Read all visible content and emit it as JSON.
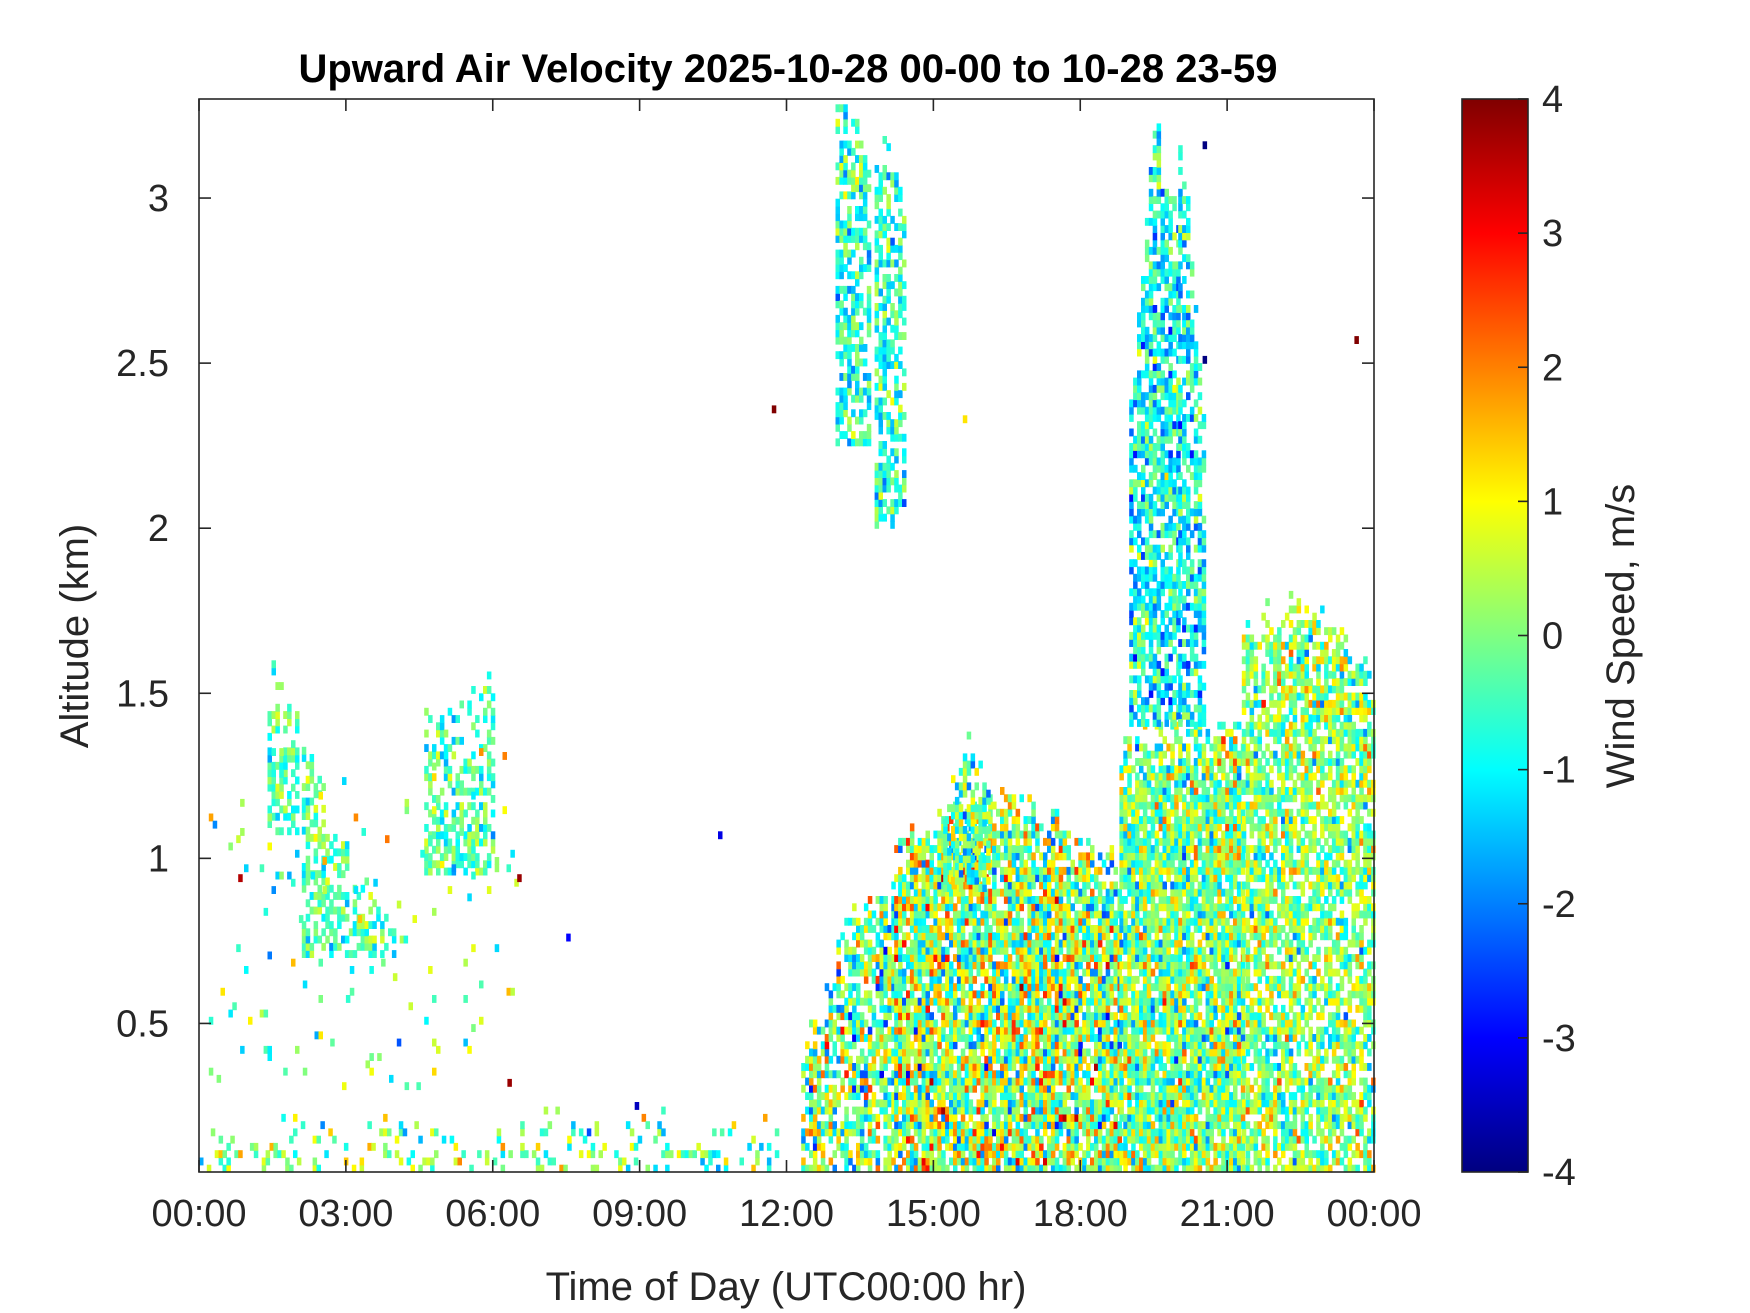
{
  "chart_data": {
    "type": "heatmap",
    "title": "Upward Air Velocity 2025-10-28 00-00 to 10-28 23-59",
    "xlabel": "Time of Day (UTC00:00 hr)",
    "ylabel": "Altitude (km)",
    "colorbar_label": "Wind Speed, m/s",
    "colormap": "jet",
    "x_ticks": [
      "00:00",
      "03:00",
      "06:00",
      "09:00",
      "12:00",
      "15:00",
      "18:00",
      "21:00",
      "00:00"
    ],
    "x_tick_hours": [
      0,
      3,
      6,
      9,
      12,
      15,
      18,
      21,
      24
    ],
    "xlim_hours": [
      0,
      24
    ],
    "y_ticks": [
      "0.5",
      "1",
      "1.5",
      "2",
      "2.5",
      "3"
    ],
    "y_tick_values": [
      0.5,
      1,
      1.5,
      2,
      2.5,
      3
    ],
    "ylim_km": [
      0.05,
      3.3
    ],
    "colorbar_ticks": [
      "4",
      "3",
      "2",
      "1",
      "0",
      "-1",
      "-2",
      "-3",
      "-4"
    ],
    "colorbar_tick_values": [
      4,
      3,
      2,
      1,
      0,
      -1,
      -2,
      -3,
      -4
    ],
    "clim": [
      -4,
      4
    ],
    "grid": false,
    "cell_size": {
      "hours": 0.08,
      "km": 0.022
    },
    "regions": [
      {
        "h0": 0.0,
        "h1": 11.8,
        "top0": 0.2,
        "top1": 0.2,
        "top2": 0.2,
        "bottom": 0.05,
        "density": 0.28,
        "mean": -0.2,
        "spread": 0.9
      },
      {
        "h0": 1.4,
        "h1": 2.0,
        "top0": 1.58,
        "top1": 1.55,
        "top2": 1.5,
        "bottom": 1.05,
        "density": 0.55,
        "mean": -0.4,
        "spread": 0.6
      },
      {
        "h0": 2.1,
        "h1": 4.2,
        "top0": 1.38,
        "top1": 0.95,
        "top2": 0.8,
        "bottom": 0.7,
        "density": 0.5,
        "mean": -0.3,
        "spread": 0.6
      },
      {
        "h0": 4.6,
        "h1": 6.0,
        "top0": 1.45,
        "top1": 1.45,
        "top2": 1.55,
        "bottom": 0.95,
        "density": 0.5,
        "mean": -0.4,
        "spread": 0.6
      },
      {
        "h0": 0.2,
        "h1": 6.5,
        "top0": 1.4,
        "top1": 1.3,
        "top2": 1.3,
        "bottom": 0.3,
        "density": 0.04,
        "mean": 0.0,
        "spread": 1.0
      },
      {
        "h0": 12.3,
        "h1": 14.2,
        "top0": 0.4,
        "top1": 0.85,
        "top2": 0.95,
        "bottom": 0.05,
        "density": 0.65,
        "mean": 0.0,
        "spread": 1.2
      },
      {
        "h0": 14.2,
        "h1": 18.8,
        "top0": 1.05,
        "top1": 1.2,
        "top2": 0.97,
        "bottom": 0.05,
        "density": 0.85,
        "mean": 0.2,
        "spread": 1.3
      },
      {
        "h0": 15.2,
        "h1": 16.1,
        "top0": 1.15,
        "top1": 1.4,
        "top2": 1.2,
        "bottom": 0.9,
        "density": 0.65,
        "mean": -0.2,
        "spread": 1.0
      },
      {
        "h0": 18.8,
        "h1": 21.3,
        "top0": 1.35,
        "top1": 1.4,
        "top2": 1.4,
        "bottom": 0.05,
        "density": 0.88,
        "mean": 0.0,
        "spread": 1.0
      },
      {
        "h0": 19.0,
        "h1": 20.0,
        "top0": 2.4,
        "top1": 3.25,
        "top2": 2.9,
        "bottom": 1.4,
        "density": 0.7,
        "mean": -0.9,
        "spread": 0.8
      },
      {
        "h0": 20.0,
        "h1": 20.5,
        "top0": 3.25,
        "top1": 2.8,
        "top2": 2.3,
        "bottom": 1.4,
        "density": 0.6,
        "mean": -1.0,
        "spread": 0.8
      },
      {
        "h0": 13.0,
        "h1": 13.7,
        "top0": 3.3,
        "top1": 3.25,
        "top2": 3.1,
        "bottom": 2.25,
        "density": 0.6,
        "mean": -0.7,
        "spread": 0.7
      },
      {
        "h0": 13.8,
        "h1": 14.4,
        "top0": 3.1,
        "top1": 3.2,
        "top2": 2.9,
        "bottom": 2.0,
        "density": 0.55,
        "mean": -0.6,
        "spread": 0.7
      },
      {
        "h0": 21.3,
        "h1": 24.0,
        "top0": 1.7,
        "top1": 1.8,
        "top2": 1.55,
        "bottom": 0.05,
        "density": 0.7,
        "mean": 0.1,
        "spread": 0.9
      }
    ],
    "outliers": [
      {
        "h": 11.7,
        "km": 2.35,
        "v": 4.0
      },
      {
        "h": 23.6,
        "km": 2.56,
        "v": 4.0
      },
      {
        "h": 10.6,
        "km": 1.06,
        "v": -3.2
      },
      {
        "h": 7.5,
        "km": 0.75,
        "v": -3.0
      },
      {
        "h": 6.5,
        "km": 0.93,
        "v": 3.8
      },
      {
        "h": 6.3,
        "km": 0.31,
        "v": 3.8
      },
      {
        "h": 8.9,
        "km": 0.24,
        "v": -3.5
      },
      {
        "h": 20.5,
        "km": 3.15,
        "v": -4.0
      },
      {
        "h": 20.5,
        "km": 2.5,
        "v": -4.0
      },
      {
        "h": 15.6,
        "km": 2.32,
        "v": 1.2
      },
      {
        "h": 0.8,
        "km": 0.93,
        "v": 3.6
      },
      {
        "h": 6.2,
        "km": 1.3,
        "v": 2.0
      }
    ]
  }
}
